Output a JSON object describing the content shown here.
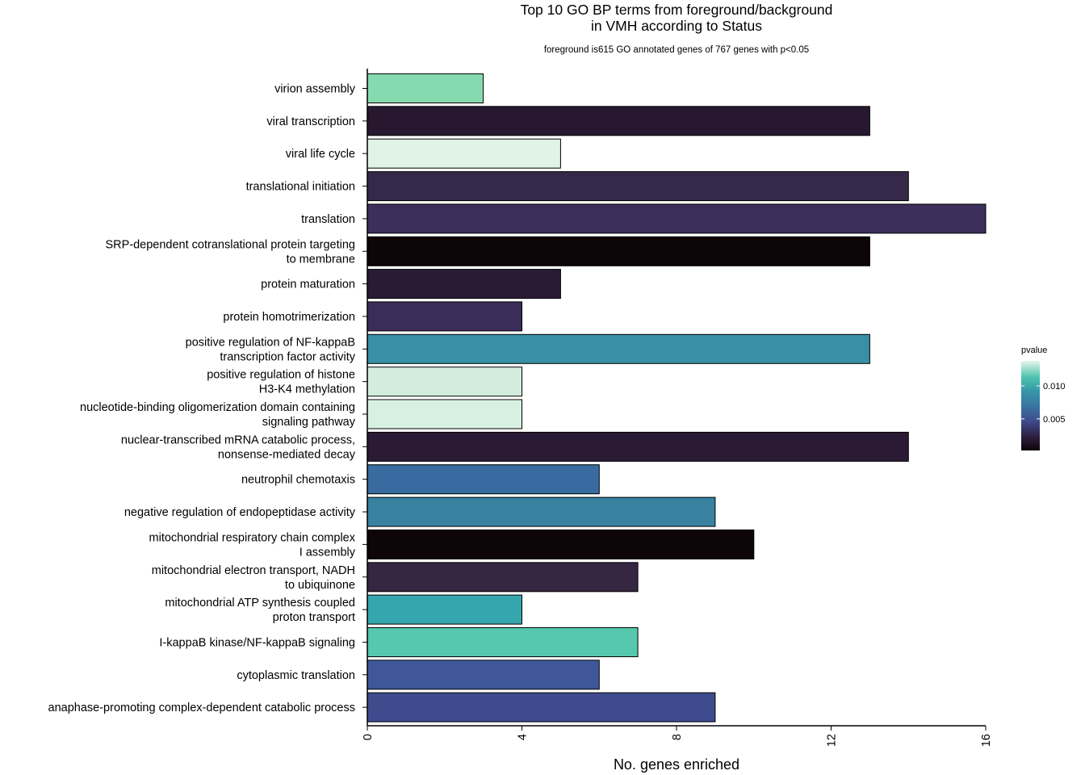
{
  "chart_data": {
    "type": "bar",
    "orientation": "horizontal",
    "title_line1": "Top 10 GO BP terms from foreground/background",
    "title_line2": "in VMH according to Status",
    "subtitle": "foreground is615 GO annotated genes of 767 genes with p<0.05",
    "xlabel": "No. genes enriched",
    "ylabel": "",
    "xlim": [
      0,
      16
    ],
    "xticks": [
      "0",
      "4",
      "8",
      "12",
      "16"
    ],
    "tick_values": [
      0,
      4,
      8,
      12,
      16
    ],
    "grid": false,
    "legend": {
      "title": "pvalue",
      "position": "right",
      "ticks": [
        {
          "label": "0.010",
          "value": 0.01
        },
        {
          "label": "0.005",
          "value": 0.005
        }
      ],
      "range": [
        0.0002,
        0.0138
      ]
    },
    "categories": [
      [
        "virion assembly"
      ],
      [
        "viral transcription"
      ],
      [
        "viral life cycle"
      ],
      [
        "translational initiation"
      ],
      [
        "translation"
      ],
      [
        "SRP-dependent cotranslational protein targeting",
        "to membrane"
      ],
      [
        "protein maturation"
      ],
      [
        "protein homotrimerization"
      ],
      [
        "positive regulation of NF-kappaB",
        "transcription factor activity"
      ],
      [
        "positive regulation of histone",
        "H3-K4 methylation"
      ],
      [
        "nucleotide-binding oligomerization domain containing",
        "signaling pathway"
      ],
      [
        "nuclear-transcribed mRNA catabolic process,",
        "nonsense-mediated decay"
      ],
      [
        "neutrophil chemotaxis"
      ],
      [
        "negative regulation of endopeptidase activity"
      ],
      [
        "mitochondrial respiratory chain complex",
        "I assembly"
      ],
      [
        "mitochondrial electron transport, NADH",
        "to ubiquinone"
      ],
      [
        "mitochondrial ATP synthesis coupled",
        "proton transport"
      ],
      [
        "I-kappaB kinase/NF-kappaB signaling"
      ],
      [
        "cytoplasmic translation"
      ],
      [
        "anaphase-promoting complex-dependent catabolic process"
      ]
    ],
    "values": [
      3,
      13,
      5,
      14,
      16,
      13,
      5,
      4,
      13,
      4,
      4,
      14,
      6,
      9,
      10,
      7,
      4,
      7,
      6,
      9
    ],
    "colors": [
      "#86DAB0",
      "#27182F",
      "#E0F3E6",
      "#362848",
      "#3C2F5C",
      "#0D0507",
      "#2A1B35",
      "#3B2C5A",
      "#3790A5",
      "#D2EDDE",
      "#D8F0E2",
      "#2A1A33",
      "#386CA0",
      "#3882A0",
      "#0D0507",
      "#352641",
      "#35A6AD",
      "#55C8AD",
      "#3F5799",
      "#3E4C8E"
    ]
  }
}
